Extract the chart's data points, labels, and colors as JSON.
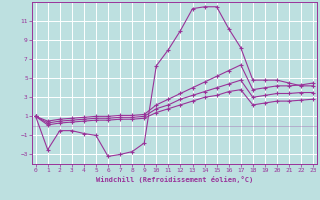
{
  "xlabel": "Windchill (Refroidissement éolien,°C)",
  "xlim": [
    -0.3,
    23.3
  ],
  "ylim": [
    -4.0,
    13.0
  ],
  "yticks": [
    -3,
    -1,
    1,
    3,
    5,
    7,
    9,
    11
  ],
  "xticks": [
    0,
    1,
    2,
    3,
    4,
    5,
    6,
    7,
    8,
    9,
    10,
    11,
    12,
    13,
    14,
    15,
    16,
    17,
    18,
    19,
    20,
    21,
    22,
    23
  ],
  "background_color": "#bde0e0",
  "line_color": "#993399",
  "grid_color": "#ffffff",
  "lines": [
    [
      1.0,
      -2.5,
      -0.5,
      -0.5,
      -0.8,
      -1.0,
      -3.2,
      -3.0,
      -2.7,
      -1.8,
      6.3,
      8.0,
      10.0,
      12.3,
      12.5,
      12.5,
      10.2,
      8.2,
      4.8,
      4.8,
      4.8,
      4.5,
      4.2,
      4.2
    ],
    [
      1.0,
      0.5,
      0.7,
      0.8,
      0.9,
      1.0,
      1.0,
      1.1,
      1.1,
      1.2,
      2.2,
      2.8,
      3.4,
      4.0,
      4.6,
      5.2,
      5.8,
      6.4,
      3.8,
      4.0,
      4.2,
      4.2,
      4.3,
      4.5
    ],
    [
      1.0,
      0.3,
      0.5,
      0.6,
      0.7,
      0.8,
      0.8,
      0.9,
      0.9,
      1.0,
      1.8,
      2.2,
      2.8,
      3.2,
      3.6,
      4.0,
      4.4,
      4.8,
      3.0,
      3.2,
      3.4,
      3.4,
      3.5,
      3.5
    ],
    [
      1.0,
      0.1,
      0.3,
      0.4,
      0.5,
      0.6,
      0.6,
      0.7,
      0.7,
      0.8,
      1.4,
      1.8,
      2.2,
      2.6,
      3.0,
      3.2,
      3.6,
      3.8,
      2.2,
      2.4,
      2.6,
      2.6,
      2.7,
      2.8
    ]
  ]
}
